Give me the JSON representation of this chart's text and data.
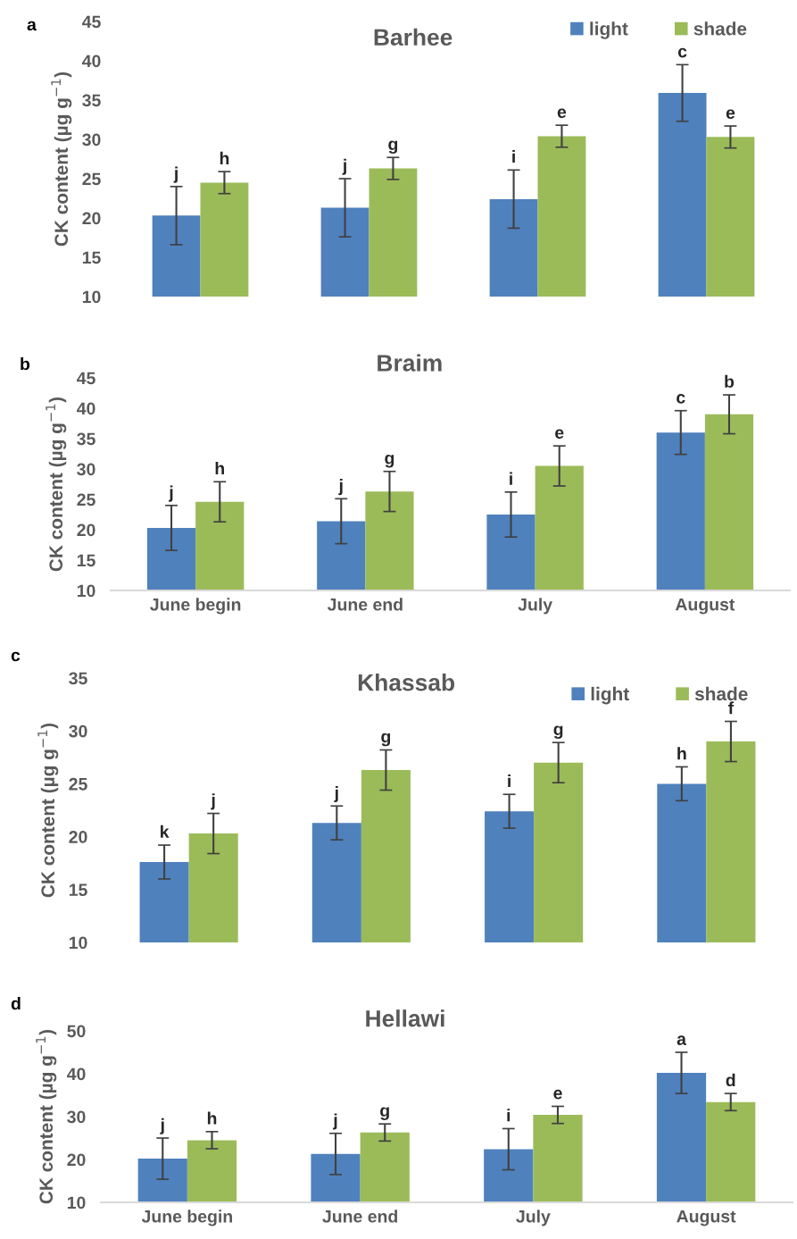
{
  "chart_data": [
    {
      "type": "bar",
      "title": "Barhee",
      "ylabel": "CK content (µg g$^{−1}$)",
      "annotations": [
        "a"
      ],
      "categories": [
        null,
        null,
        null,
        null
      ],
      "tick_labels": "y",
      "legend": "top right",
      "ylim": [
        10,
        45
      ],
      "yticks": [
        10,
        15,
        20,
        25,
        30,
        35,
        40,
        45
      ],
      "series": [
        {
          "name": "light",
          "color": "#4f81bd",
          "values": [
            20.3,
            21.3,
            22.4,
            35.9
          ],
          "errors": [
            3.7,
            3.7,
            3.7,
            3.6
          ],
          "value_labels": [
            "j",
            "j",
            "i",
            "c"
          ]
        },
        {
          "name": "shade",
          "color": "#9bbb59",
          "values": [
            24.5,
            26.3,
            30.4,
            30.3
          ],
          "errors": [
            1.4,
            1.4,
            1.4,
            1.4
          ],
          "value_labels": [
            "h",
            "g",
            "e",
            "e"
          ]
        }
      ]
    },
    {
      "type": "bar",
      "title": "Braim",
      "ylabel": "CK content (µg g$^{−1}$)",
      "annotations": [
        "b"
      ],
      "categories": [
        "June begin",
        "June end",
        "July",
        "August"
      ],
      "ylim": [
        10,
        45
      ],
      "yticks": [
        10,
        15,
        20,
        25,
        30,
        35,
        40,
        45
      ],
      "series": [
        {
          "color": "#4f81bd",
          "values": [
            20.3,
            21.4,
            22.5,
            36.0
          ],
          "errors": [
            3.7,
            3.7,
            3.7,
            3.6
          ],
          "value_labels": [
            "j",
            "j",
            "i",
            "c"
          ]
        },
        {
          "color": "#9bbb59",
          "values": [
            24.6,
            26.3,
            30.5,
            39.0
          ],
          "errors": [
            3.3,
            3.3,
            3.3,
            3.2
          ],
          "value_labels": [
            "h",
            "g",
            "e",
            "b"
          ]
        }
      ]
    },
    {
      "type": "bar",
      "title": "Khassab",
      "ylabel": "CK content (µg g$^{−1}$)",
      "annotations": [
        "c"
      ],
      "categories": [
        null,
        null,
        null,
        null
      ],
      "tick_labels": "y",
      "legend": "top right",
      "ylim": [
        10,
        35
      ],
      "yticks": [
        10,
        15,
        20,
        25,
        30,
        35
      ],
      "series": [
        {
          "name": "light",
          "color": "#4f81bd",
          "values": [
            17.6,
            21.3,
            22.4,
            25.0
          ],
          "errors": [
            1.6,
            1.6,
            1.6,
            1.6
          ],
          "value_labels": [
            "k",
            "j",
            "i",
            "h"
          ]
        },
        {
          "name": "shade",
          "color": "#9bbb59",
          "values": [
            20.3,
            26.3,
            27.0,
            29.0
          ],
          "errors": [
            1.9,
            1.9,
            1.9,
            1.9
          ],
          "value_labels": [
            "j",
            "g",
            "g",
            "f"
          ]
        }
      ]
    },
    {
      "type": "bar",
      "title": "Hellawi",
      "ylabel": "CK content (µg g$^{−1}$)",
      "annotations": [
        "d"
      ],
      "categories": [
        "June begin",
        "June end",
        "July",
        "August"
      ],
      "ylim": [
        10,
        50
      ],
      "yticks": [
        10,
        20,
        30,
        40,
        50
      ],
      "series": [
        {
          "color": "#4f81bd",
          "values": [
            20.2,
            21.3,
            22.4,
            40.2
          ],
          "errors": [
            4.8,
            4.8,
            4.8,
            4.8
          ],
          "value_labels": [
            "j",
            "j",
            "i",
            "a"
          ]
        },
        {
          "color": "#9bbb59",
          "values": [
            24.5,
            26.3,
            30.4,
            33.4
          ],
          "errors": [
            2.0,
            2.0,
            2.0,
            2.0
          ],
          "value_labels": [
            "h",
            "g",
            "e",
            "d"
          ]
        }
      ]
    }
  ]
}
